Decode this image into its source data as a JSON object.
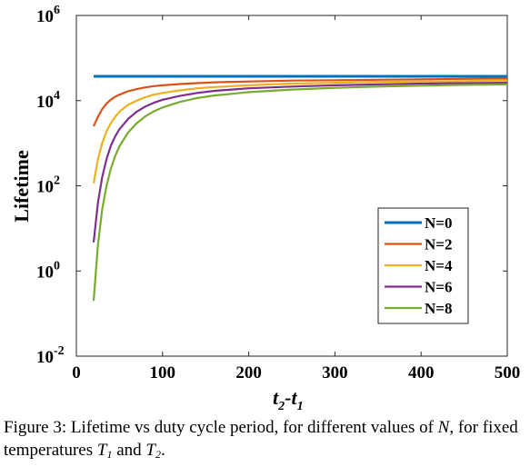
{
  "chart_data": {
    "type": "line",
    "title": "",
    "xlabel": {
      "main": "t",
      "sub1": "2",
      "mid": "-t",
      "sub2": "1"
    },
    "ylabel": "Lifetime",
    "xlim": [
      0,
      500
    ],
    "ylim_log10": [
      -2,
      6
    ],
    "yscale": "log",
    "grid": false,
    "legend_position": "lower-right",
    "x_ticks": [
      "0",
      "100",
      "200",
      "300",
      "400",
      "500"
    ],
    "y_ticks": [
      {
        "base": "10",
        "exp": "-2"
      },
      {
        "base": "10",
        "exp": "0"
      },
      {
        "base": "10",
        "exp": "2"
      },
      {
        "base": "10",
        "exp": "4"
      },
      {
        "base": "10",
        "exp": "6"
      }
    ],
    "x": [
      20,
      25,
      30,
      35,
      40,
      45,
      50,
      60,
      70,
      80,
      90,
      100,
      120,
      140,
      160,
      180,
      200,
      250,
      300,
      350,
      400,
      450,
      500
    ],
    "series": [
      {
        "name": "N=0",
        "color": "#0072BD",
        "log10_values": [
          4.57,
          4.57,
          4.57,
          4.57,
          4.57,
          4.57,
          4.57,
          4.57,
          4.57,
          4.57,
          4.57,
          4.57,
          4.57,
          4.57,
          4.57,
          4.57,
          4.57,
          4.57,
          4.57,
          4.57,
          4.57,
          4.57,
          4.57
        ]
      },
      {
        "name": "N=2",
        "color": "#D95319",
        "log10_values": [
          3.4,
          3.62,
          3.8,
          3.93,
          4.02,
          4.09,
          4.14,
          4.22,
          4.27,
          4.31,
          4.34,
          4.36,
          4.39,
          4.41,
          4.43,
          4.44,
          4.45,
          4.47,
          4.48,
          4.49,
          4.5,
          4.51,
          4.52
        ]
      },
      {
        "name": "N=4",
        "color": "#EDB120",
        "log10_values": [
          2.06,
          2.62,
          3.0,
          3.28,
          3.47,
          3.62,
          3.74,
          3.9,
          4.0,
          4.08,
          4.14,
          4.18,
          4.24,
          4.29,
          4.32,
          4.34,
          4.36,
          4.4,
          4.42,
          4.44,
          4.45,
          4.46,
          4.47
        ]
      },
      {
        "name": "N=6",
        "color": "#7E2F8E",
        "log10_values": [
          0.67,
          1.6,
          2.2,
          2.63,
          2.94,
          3.16,
          3.33,
          3.57,
          3.74,
          3.86,
          3.95,
          4.02,
          4.11,
          4.18,
          4.23,
          4.26,
          4.29,
          4.33,
          4.36,
          4.38,
          4.4,
          4.41,
          4.42
        ]
      },
      {
        "name": "N=8",
        "color": "#77AC30",
        "log10_values": [
          -0.7,
          0.6,
          1.45,
          2.0,
          2.4,
          2.7,
          2.93,
          3.25,
          3.47,
          3.63,
          3.75,
          3.84,
          3.97,
          4.06,
          4.12,
          4.16,
          4.2,
          4.26,
          4.3,
          4.33,
          4.35,
          4.37,
          4.38
        ]
      }
    ]
  },
  "caption": {
    "prefix": "Figure 3: Lifetime vs duty cycle period, for different values of",
    "n_symbol": "N",
    "middle": ", for fixed temperatures ",
    "t": "T",
    "sub1": "1",
    "and": " and ",
    "sub2": "2",
    "end": "."
  }
}
